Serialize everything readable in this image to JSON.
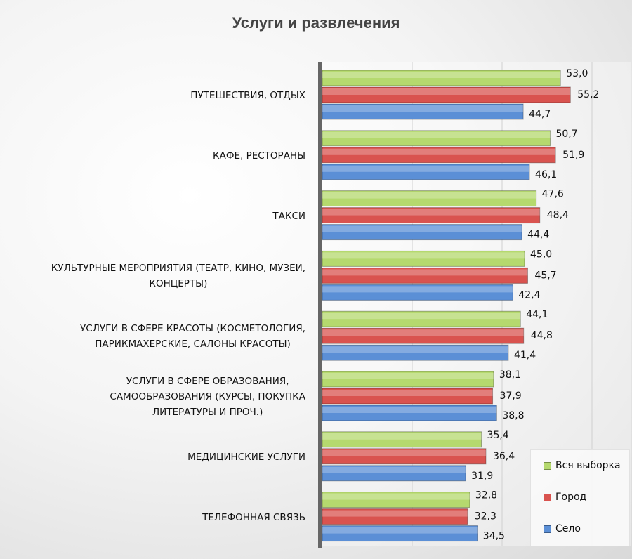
{
  "chart_data": {
    "type": "bar",
    "orientation": "horizontal",
    "title": "Услуги и развлечения",
    "categories": [
      [
        "ПУТЕШЕСТВИЯ, ОТДЫХ"
      ],
      [
        "КАФЕ, РЕСТОРАНЫ"
      ],
      [
        "ТАКСИ"
      ],
      [
        "КУЛЬТУРНЫЕ МЕРОПРИЯТИЯ (ТЕАТР, КИНО, МУЗЕИ,",
        "КОНЦЕРТЫ)"
      ],
      [
        "УСЛУГИ В СФЕРЕ КРАСОТЫ (КОСМЕТОЛОГИЯ,",
        "ПАРИКМАХЕРСКИЕ, САЛОНЫ КРАСОТЫ)"
      ],
      [
        "УСЛУГИ В СФЕРЕ ОБРАЗОВАНИЯ,",
        "САМООБРАЗОВАНИЯ (КУРСЫ, ПОКУПКА",
        "ЛИТЕРАТУРЫ И ПРОЧ.)"
      ],
      [
        "МЕДИЦИНСКИЕ УСЛУГИ"
      ],
      [
        "ТЕЛЕФОННАЯ СВЯЗЬ"
      ]
    ],
    "series": [
      {
        "name": "Вся выборка",
        "color": "#b5d96e",
        "labels": [
          "53,0",
          "50,7",
          "47,6",
          "45,0",
          "44,1",
          "38,1",
          "35,4",
          "32,8"
        ],
        "values": [
          53.0,
          50.7,
          47.6,
          45.0,
          44.1,
          38.1,
          35.4,
          32.8
        ]
      },
      {
        "name": "Город",
        "color": "#d9534f",
        "labels": [
          "55,2",
          "51,9",
          "48,4",
          "45,7",
          "44,8",
          "37,9",
          "36,4",
          "32,3"
        ],
        "values": [
          55.2,
          51.9,
          48.4,
          45.7,
          44.8,
          37.9,
          36.4,
          32.3
        ]
      },
      {
        "name": "Село",
        "color": "#5b8fd6",
        "labels": [
          "44,7",
          "46,1",
          "44,4",
          "42,4",
          "41,4",
          "38,8",
          "31,9",
          "34,5"
        ],
        "values": [
          44.7,
          46.1,
          44.4,
          42.4,
          41.4,
          38.8,
          31.9,
          34.5
        ]
      }
    ],
    "xlim": [
      0,
      60
    ],
    "grid": true,
    "legend": "bottom-right"
  }
}
